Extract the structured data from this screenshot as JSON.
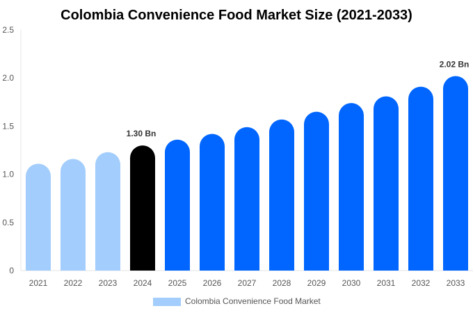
{
  "chart_data": {
    "type": "bar",
    "title": "Colombia Convenience Food Market Size (2021-2033)",
    "categories": [
      "2021",
      "2022",
      "2023",
      "2024",
      "2025",
      "2026",
      "2027",
      "2028",
      "2029",
      "2030",
      "2031",
      "2032",
      "2033"
    ],
    "series": [
      {
        "name": "Colombia Convenience Food Market",
        "values": [
          1.11,
          1.16,
          1.23,
          1.3,
          1.36,
          1.42,
          1.49,
          1.57,
          1.65,
          1.74,
          1.81,
          1.91,
          2.02
        ]
      }
    ],
    "data_labels": [
      {
        "index": 3,
        "text": "1.30 Bn"
      },
      {
        "index": 12,
        "text": "2.02 Bn"
      }
    ],
    "ylim": [
      0,
      2.5
    ],
    "yticks": [
      "0",
      "0.5",
      "1.0",
      "1.5",
      "2.0",
      "2.5"
    ],
    "grid": false,
    "legend_position": "bottom",
    "colors": {
      "historical": "#a3cdfc",
      "current": "#000000",
      "forecast": "#0066ff"
    }
  }
}
